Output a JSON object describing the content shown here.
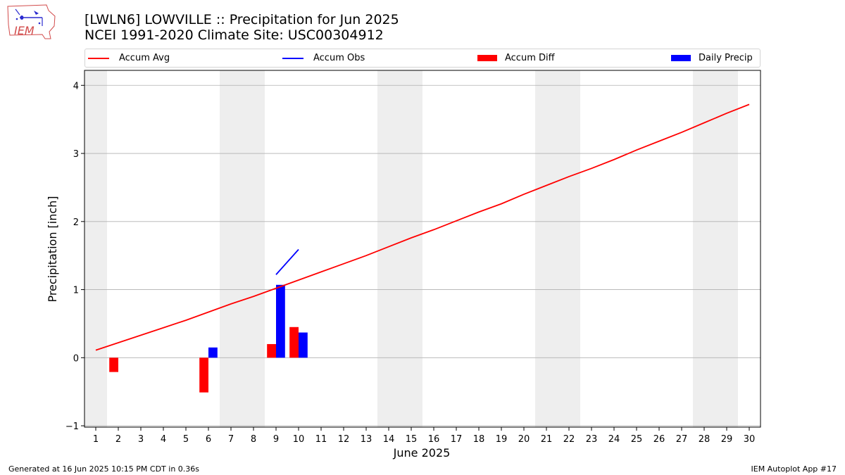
{
  "header": {
    "title_line1": "[LWLN6] LOWVILLE :: Precipitation for Jun 2025",
    "title_line2": "NCEI 1991-2020 Climate Site: USC00304912"
  },
  "logo": {
    "text": "IEM",
    "icon": "iem-iowa-logo"
  },
  "footer": {
    "generated": "Generated at 16 Jun 2025 10:15 PM CDT in 0.36s",
    "app": "IEM Autoplot App #17"
  },
  "colors": {
    "avg": "#ff0000",
    "obs": "#0000ff",
    "diff": "#ff0000",
    "daily": "#0000ff",
    "weekend": "#eeeeee",
    "grid": "#b0b0b0"
  },
  "chart_data": {
    "type": "bar",
    "title": "[LWLN6] LOWVILLE :: Precipitation for Jun 2025",
    "subtitle": "NCEI 1991-2020 Climate Site: USC00304912",
    "xlabel": "June 2025",
    "ylabel": "Precipitation [inch]",
    "xlim": [
      0.5,
      30.5
    ],
    "ylim": [
      -1.02,
      4.22
    ],
    "yticks": [
      -1,
      0,
      1,
      2,
      3,
      4
    ],
    "xticks": [
      1,
      2,
      3,
      4,
      5,
      6,
      7,
      8,
      9,
      10,
      11,
      12,
      13,
      14,
      15,
      16,
      17,
      18,
      19,
      20,
      21,
      22,
      23,
      24,
      25,
      26,
      27,
      28,
      29,
      30
    ],
    "weekend_bands": [
      [
        0.5,
        1.5
      ],
      [
        6.5,
        8.5
      ],
      [
        13.5,
        15.5
      ],
      [
        20.5,
        22.5
      ],
      [
        27.5,
        29.5
      ]
    ],
    "grid": "y",
    "legend_position": "top",
    "legend": [
      "Accum Avg",
      "Accum Obs",
      "Accum Diff",
      "Daily Precip"
    ],
    "series": [
      {
        "name": "Accum Avg",
        "type": "line",
        "x": [
          1,
          2,
          3,
          4,
          5,
          6,
          7,
          8,
          9,
          10,
          11,
          12,
          13,
          14,
          15,
          16,
          17,
          18,
          19,
          20,
          21,
          22,
          23,
          24,
          25,
          26,
          27,
          28,
          29,
          30
        ],
        "values": [
          0.11,
          0.22,
          0.33,
          0.44,
          0.55,
          0.67,
          0.79,
          0.9,
          1.02,
          1.14,
          1.26,
          1.38,
          1.5,
          1.63,
          1.76,
          1.88,
          2.01,
          2.14,
          2.26,
          2.4,
          2.53,
          2.66,
          2.78,
          2.91,
          3.05,
          3.18,
          3.31,
          3.45,
          3.59,
          3.72
        ]
      },
      {
        "name": "Accum Obs",
        "type": "line",
        "x": [
          9,
          10
        ],
        "values": [
          1.22,
          1.59
        ]
      },
      {
        "name": "Accum Diff",
        "type": "bar",
        "x": [
          2,
          6,
          9,
          10
        ],
        "values": [
          -0.21,
          -0.51,
          0.2,
          0.45
        ]
      },
      {
        "name": "Daily Precip",
        "type": "bar",
        "x": [
          6,
          9,
          10
        ],
        "values": [
          0.15,
          1.07,
          0.37
        ]
      }
    ]
  }
}
